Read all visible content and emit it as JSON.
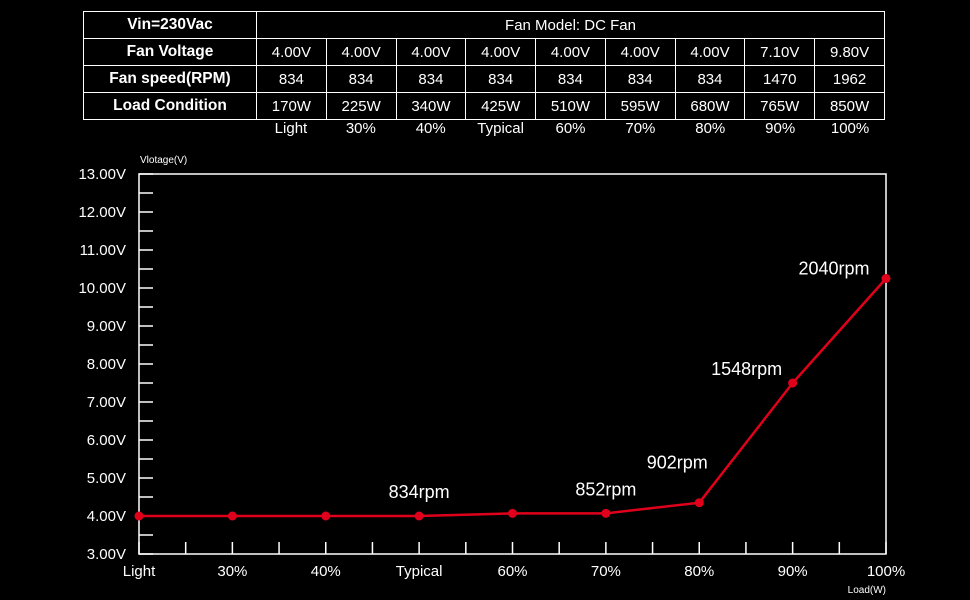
{
  "table": {
    "corner": "Vin=230Vac",
    "title": "Fan Model: DC Fan",
    "rows": [
      {
        "label": "Fan Voltage",
        "cells": [
          "4.00V",
          "4.00V",
          "4.00V",
          "4.00V",
          "4.00V",
          "4.00V",
          "4.00V",
          "7.10V",
          "9.80V"
        ]
      },
      {
        "label": "Fan speed(RPM)",
        "cells": [
          "834",
          "834",
          "834",
          "834",
          "834",
          "834",
          "834",
          "1470",
          "1962"
        ]
      },
      {
        "label": "Load Condition",
        "cells": [
          "170W",
          "225W",
          "340W",
          "425W",
          "510W",
          "595W",
          "680W",
          "765W",
          "850W"
        ]
      }
    ],
    "load_labels": [
      "Light",
      "30%",
      "40%",
      "Typical",
      "60%",
      "70%",
      "80%",
      "90%",
      "100%"
    ]
  },
  "chart_data": {
    "type": "line",
    "xlabel": "Load(W)",
    "ylabel": "Vlotage(V)",
    "categories": [
      "Light",
      "30%",
      "40%",
      "Typical",
      "60%",
      "70%",
      "80%",
      "90%",
      "100%"
    ],
    "yticks": [
      "3.00V",
      "4.00V",
      "5.00V",
      "6.00V",
      "7.00V",
      "8.00V",
      "9.00V",
      "10.00V",
      "11.00V",
      "12.00V",
      "13.00V"
    ],
    "ylim": [
      3,
      13
    ],
    "series": [
      {
        "values": [
          4.0,
          4.0,
          4.0,
          4.0,
          4.07,
          4.07,
          4.35,
          7.5,
          10.25
        ],
        "color": "#e0001b"
      }
    ],
    "annotations": [
      {
        "index": 3,
        "text": "834rpm"
      },
      {
        "index": 5,
        "text": "852rpm"
      },
      {
        "index": 6,
        "text": "902rpm"
      },
      {
        "index": 7,
        "text": "1548rpm"
      },
      {
        "index": 8,
        "text": "2040rpm"
      }
    ],
    "grid": false
  }
}
